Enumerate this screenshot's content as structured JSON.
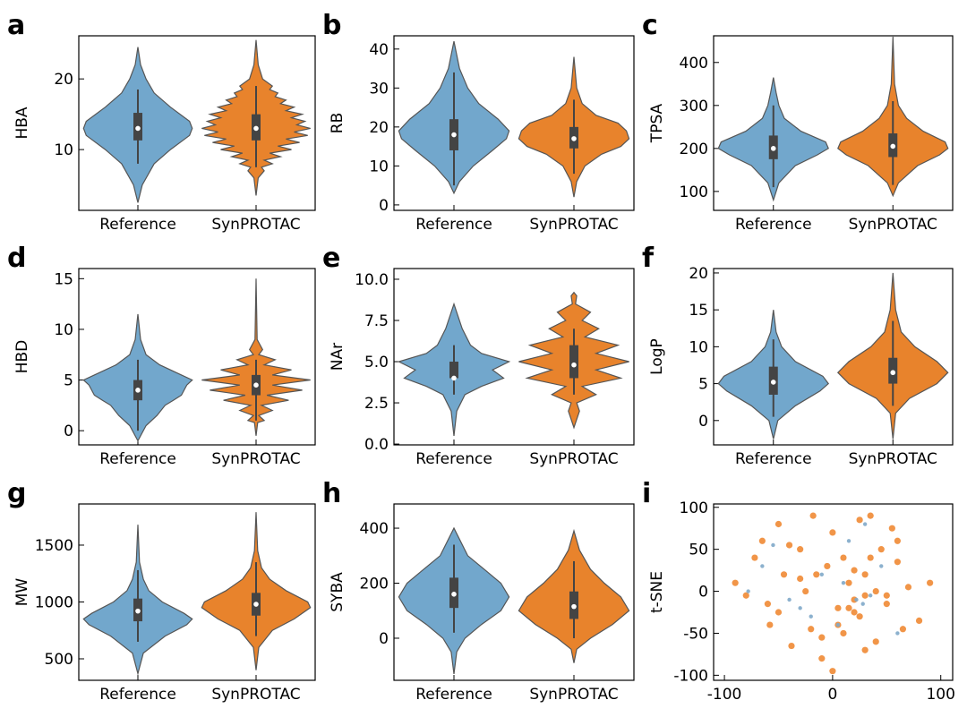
{
  "chart_data": [
    {
      "type": "violin",
      "label": "a",
      "ylabel": "HBA",
      "categories": [
        "Reference",
        "SynPROTAC"
      ],
      "ylim": [
        1.4,
        26.1
      ],
      "yticks": [
        10,
        20
      ],
      "violins": [
        {
          "color": "#72a7cc",
          "whisker_low": 8,
          "q1": 11.3,
          "median": 13,
          "q3": 15.2,
          "whisker_high": 18.5,
          "density_y": [
            2.5,
            5,
            8,
            10,
            12,
            13,
            14,
            16,
            18,
            20,
            22,
            24.5
          ],
          "density_width": [
            0,
            0.08,
            0.3,
            0.6,
            0.95,
            1,
            0.95,
            0.6,
            0.3,
            0.15,
            0.05,
            0
          ]
        },
        {
          "color": "#e8832c",
          "whisker_low": 7.5,
          "q1": 11.3,
          "median": 13,
          "q3": 15,
          "whisker_high": 19,
          "density_y": [
            3.5,
            6,
            7,
            7.5,
            8,
            8.5,
            9,
            9.5,
            10,
            10.5,
            11,
            11.5,
            12,
            12.5,
            13,
            13.5,
            14,
            14.5,
            15,
            15.5,
            16,
            16.5,
            17,
            17.5,
            18,
            18.5,
            19,
            20,
            22,
            25.5
          ],
          "density_width": [
            0,
            0.04,
            0.15,
            0.1,
            0.3,
            0.15,
            0.45,
            0.25,
            0.65,
            0.4,
            0.8,
            0.55,
            0.95,
            0.7,
            1,
            0.75,
            0.9,
            0.65,
            0.85,
            0.55,
            0.7,
            0.45,
            0.55,
            0.35,
            0.4,
            0.25,
            0.3,
            0.12,
            0.04,
            0
          ]
        }
      ]
    },
    {
      "type": "violin",
      "label": "b",
      "ylabel": "RB",
      "categories": [
        "Reference",
        "SynPROTAC"
      ],
      "ylim": [
        -1.4,
        43.4
      ],
      "yticks": [
        0,
        10,
        20,
        30,
        40
      ],
      "violins": [
        {
          "color": "#72a7cc",
          "whisker_low": 5,
          "q1": 14,
          "median": 18,
          "q3": 22,
          "whisker_high": 34,
          "density_y": [
            3,
            6,
            10,
            14,
            17,
            19,
            22,
            26,
            30,
            35,
            42
          ],
          "density_width": [
            0,
            0.1,
            0.35,
            0.7,
            0.95,
            1,
            0.8,
            0.45,
            0.25,
            0.1,
            0
          ]
        },
        {
          "color": "#e8832c",
          "whisker_low": 8,
          "q1": 14.5,
          "median": 17,
          "q3": 20,
          "whisker_high": 27,
          "density_y": [
            2,
            6,
            10,
            13,
            15,
            17,
            19,
            21,
            23,
            26,
            30,
            38
          ],
          "density_width": [
            0,
            0.05,
            0.2,
            0.5,
            0.85,
            1,
            0.95,
            0.8,
            0.4,
            0.15,
            0.05,
            0
          ]
        }
      ]
    },
    {
      "type": "violin",
      "label": "c",
      "ylabel": "TPSA",
      "categories": [
        "Reference",
        "SynPROTAC"
      ],
      "ylim": [
        56,
        462
      ],
      "yticks": [
        100,
        200,
        300,
        400
      ],
      "violins": [
        {
          "color": "#72a7cc",
          "whisker_low": 110,
          "q1": 175,
          "median": 200,
          "q3": 230,
          "whisker_high": 300,
          "density_y": [
            80,
            120,
            160,
            185,
            200,
            215,
            240,
            270,
            300,
            330,
            365
          ],
          "density_width": [
            0,
            0.1,
            0.4,
            0.8,
            1,
            0.95,
            0.5,
            0.2,
            0.1,
            0.05,
            0
          ]
        },
        {
          "color": "#e8832c",
          "whisker_low": 115,
          "q1": 180,
          "median": 205,
          "q3": 235,
          "whisker_high": 310,
          "density_y": [
            90,
            120,
            160,
            185,
            200,
            215,
            240,
            270,
            300,
            350,
            460
          ],
          "density_width": [
            0,
            0.1,
            0.45,
            0.85,
            1,
            0.95,
            0.55,
            0.25,
            0.1,
            0.03,
            0
          ]
        }
      ]
    },
    {
      "type": "violin",
      "label": "d",
      "ylabel": "HBD",
      "categories": [
        "Reference",
        "SynPROTAC"
      ],
      "ylim": [
        -1.4,
        16
      ],
      "yticks": [
        0,
        5,
        10,
        15
      ],
      "violins": [
        {
          "color": "#72a7cc",
          "whisker_low": 0,
          "q1": 3,
          "median": 4,
          "q3": 5,
          "whisker_high": 7,
          "density_y": [
            -1,
            0.5,
            1.5,
            2.5,
            3,
            3.5,
            4,
            4.5,
            5,
            5.5,
            6.5,
            7.5,
            9,
            11.5
          ],
          "density_width": [
            0,
            0.15,
            0.35,
            0.5,
            0.65,
            0.8,
            0.85,
            0.9,
            1,
            0.8,
            0.4,
            0.15,
            0.05,
            0
          ]
        },
        {
          "color": "#e8832c",
          "whisker_low": 1,
          "q1": 3.5,
          "median": 4.5,
          "q3": 5.5,
          "whisker_high": 7,
          "density_y": [
            -0.5,
            0.8,
            1,
            1.5,
            2,
            2.5,
            3,
            3.5,
            4,
            4.5,
            5,
            5.5,
            6,
            6.5,
            7,
            7.5,
            8,
            9,
            12,
            15
          ],
          "density_width": [
            0,
            0.03,
            0.15,
            0.05,
            0.3,
            0.1,
            0.6,
            0.2,
            0.85,
            0.3,
            1,
            0.3,
            0.65,
            0.15,
            0.35,
            0.05,
            0.12,
            0.02,
            0.01,
            0
          ]
        }
      ]
    },
    {
      "type": "violin",
      "label": "e",
      "ylabel": "NAr",
      "categories": [
        "Reference",
        "SynPROTAC"
      ],
      "ylim": [
        -0.05,
        10.65
      ],
      "yticks": [
        {
          "value": 0,
          "label": "0.0"
        },
        2.5,
        {
          "value": 5,
          "label": "5.0"
        },
        7.5,
        {
          "value": 10,
          "label": "10.0"
        }
      ],
      "violins": [
        {
          "color": "#72a7cc",
          "whisker_low": 3,
          "q1": 4,
          "median": 4,
          "q3": 5,
          "whisker_high": 6,
          "density_y": [
            0.5,
            2,
            3,
            3.5,
            4,
            4.5,
            5,
            5.5,
            6,
            7,
            8.5
          ],
          "density_width": [
            0,
            0.05,
            0.2,
            0.5,
            0.9,
            0.7,
            1,
            0.5,
            0.3,
            0.15,
            0
          ]
        },
        {
          "color": "#e8832c",
          "whisker_low": 3,
          "q1": 4,
          "median": 4.8,
          "q3": 6,
          "whisker_high": 7,
          "density_y": [
            1,
            2,
            2.5,
            3,
            3.5,
            4,
            4.5,
            5,
            5.5,
            6,
            6.5,
            7,
            7.5,
            8,
            8.5,
            9,
            9.2
          ],
          "density_width": [
            0,
            0.1,
            0.05,
            0.4,
            0.15,
            0.85,
            0.4,
            1,
            0.4,
            0.8,
            0.2,
            0.45,
            0.15,
            0.3,
            0.03,
            0.05,
            0
          ]
        }
      ]
    },
    {
      "type": "violin",
      "label": "f",
      "ylabel": "LogP",
      "categories": [
        "Reference",
        "SynPROTAC"
      ],
      "ylim": [
        -3.3,
        20.6
      ],
      "yticks": [
        0,
        5,
        10,
        15,
        20
      ],
      "violins": [
        {
          "color": "#72a7cc",
          "whisker_low": 0.5,
          "q1": 3.5,
          "median": 5.2,
          "q3": 7.3,
          "whisker_high": 11,
          "density_y": [
            -2.5,
            0,
            2,
            4,
            5,
            6,
            8,
            10,
            12,
            15
          ],
          "density_width": [
            0,
            0.08,
            0.4,
            0.85,
            1,
            0.9,
            0.4,
            0.15,
            0.05,
            0
          ]
        },
        {
          "color": "#e8832c",
          "whisker_low": 2,
          "q1": 5,
          "median": 6.5,
          "q3": 8.5,
          "whisker_high": 13.5,
          "density_y": [
            -2.5,
            1,
            3,
            5,
            6.5,
            8,
            10,
            12,
            15,
            20
          ],
          "density_width": [
            0,
            0.05,
            0.3,
            0.8,
            1,
            0.8,
            0.4,
            0.15,
            0.05,
            0
          ]
        }
      ]
    },
    {
      "type": "violin",
      "label": "g",
      "ylabel": "MW",
      "categories": [
        "Reference",
        "SynPROTAC"
      ],
      "ylim": [
        311,
        1862
      ],
      "yticks": [
        500,
        1000,
        1500
      ],
      "violins": [
        {
          "color": "#72a7cc",
          "whisker_low": 650,
          "q1": 830,
          "median": 920,
          "q3": 1030,
          "whisker_high": 1280,
          "density_y": [
            370,
            550,
            700,
            800,
            850,
            900,
            1000,
            1100,
            1200,
            1350,
            1680
          ],
          "density_width": [
            0,
            0.1,
            0.5,
            0.9,
            1,
            0.85,
            0.45,
            0.2,
            0.1,
            0.03,
            0
          ]
        },
        {
          "color": "#e8832c",
          "whisker_low": 700,
          "q1": 880,
          "median": 980,
          "q3": 1080,
          "whisker_high": 1350,
          "density_y": [
            400,
            600,
            750,
            850,
            950,
            1000,
            1100,
            1200,
            1300,
            1450,
            1790
          ],
          "density_width": [
            0,
            0.05,
            0.3,
            0.7,
            1,
            0.95,
            0.55,
            0.25,
            0.1,
            0.03,
            0
          ]
        }
      ]
    },
    {
      "type": "violin",
      "label": "h",
      "ylabel": "SYBA",
      "categories": [
        "Reference",
        "SynPROTAC"
      ],
      "ylim": [
        -153,
        488
      ],
      "yticks": [
        0,
        200,
        400
      ],
      "violins": [
        {
          "color": "#72a7cc",
          "whisker_low": 20,
          "q1": 110,
          "median": 160,
          "q3": 220,
          "whisker_high": 340,
          "density_y": [
            -130,
            -50,
            0,
            50,
            100,
            150,
            200,
            250,
            300,
            400
          ],
          "density_width": [
            0,
            0.05,
            0.2,
            0.5,
            0.85,
            1,
            0.85,
            0.55,
            0.25,
            0
          ]
        },
        {
          "color": "#e8832c",
          "whisker_low": 0,
          "q1": 70,
          "median": 115,
          "q3": 170,
          "whisker_high": 280,
          "density_y": [
            -90,
            -40,
            0,
            50,
            100,
            150,
            200,
            250,
            320,
            390
          ],
          "density_width": [
            0,
            0.05,
            0.3,
            0.7,
            1,
            0.85,
            0.55,
            0.3,
            0.1,
            0
          ]
        }
      ]
    },
    {
      "type": "scatter",
      "label": "i",
      "ylabel": "t-SNE",
      "xlim": [
        -110,
        111
      ],
      "ylim": [
        -106,
        104
      ],
      "xticks": [
        -100,
        0,
        100
      ],
      "yticks": [
        -100,
        -50,
        0,
        50,
        100
      ],
      "series": [
        {
          "color": "#ef8a34",
          "x": [
            -90,
            -80,
            -72,
            -65,
            -58,
            -50,
            -45,
            -38,
            -30,
            -25,
            -18,
            -10,
            -5,
            0,
            5,
            10,
            15,
            20,
            25,
            30,
            35,
            40,
            45,
            50,
            55,
            60,
            65,
            70,
            80,
            90,
            -60,
            -40,
            -20,
            0,
            20,
            40,
            60,
            -50,
            -30,
            -10,
            10,
            30,
            50,
            15,
            25,
            35,
            -15,
            5,
            20,
            30
          ],
          "y": [
            10,
            -5,
            40,
            60,
            -40,
            80,
            20,
            -65,
            50,
            0,
            90,
            -80,
            30,
            70,
            -20,
            -50,
            10,
            -10,
            -30,
            20,
            90,
            -60,
            50,
            -15,
            75,
            35,
            -45,
            5,
            -35,
            10,
            -15,
            55,
            -45,
            -95,
            -25,
            0,
            60,
            -25,
            15,
            -55,
            40,
            -70,
            -5,
            -20,
            85,
            40,
            20,
            -40,
            25,
            -5
          ]
        },
        {
          "color": "#7fa9c9",
          "x": [
            -78,
            -55,
            -40,
            -20,
            -10,
            5,
            15,
            22,
            28,
            35,
            -30,
            10,
            45,
            60,
            -65,
            30
          ],
          "y": [
            0,
            55,
            -10,
            -30,
            20,
            -40,
            60,
            -10,
            -15,
            -5,
            -20,
            10,
            30,
            -50,
            30,
            80
          ]
        }
      ]
    }
  ]
}
